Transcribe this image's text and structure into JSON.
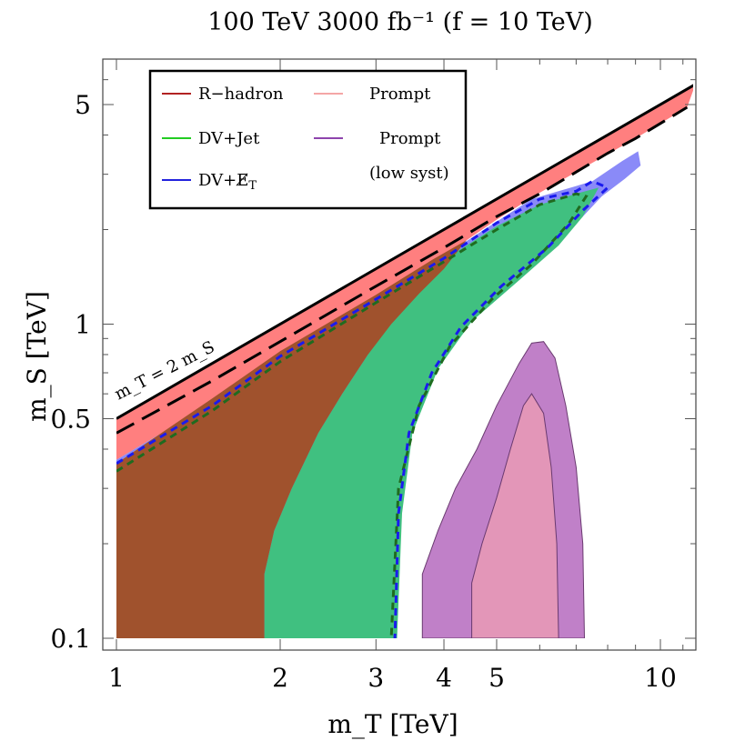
{
  "chart_data": {
    "type": "area",
    "title": "100 TeV 3000 fb⁻¹ (f = 10 TeV)",
    "xlabel": "m_T [TeV]",
    "ylabel": "m_S [TeV]",
    "xscale": "log",
    "yscale": "log",
    "xlim": [
      0.92,
      12.4
    ],
    "ylim": [
      0.09,
      7.5
    ],
    "x_ticks": [
      {
        "value": 1,
        "label": "1"
      },
      {
        "value": 2,
        "label": "2"
      },
      {
        "value": 3,
        "label": "3"
      },
      {
        "value": 4,
        "label": "4"
      },
      {
        "value": 5,
        "label": "5"
      },
      {
        "value": 10,
        "label": "10"
      }
    ],
    "y_ticks": [
      {
        "value": 0.1,
        "label": "0.1"
      },
      {
        "value": 0.5,
        "label": "0.5"
      },
      {
        "value": 1,
        "label": "1"
      },
      {
        "value": 5,
        "label": "5"
      }
    ],
    "annotation": "m_T = 2 m_S",
    "legend": [
      {
        "name": "R−hadron",
        "color": "#b22222"
      },
      {
        "name": "Prompt",
        "color": "#f4a6a6"
      },
      {
        "name": "DV+Jet",
        "color": "#22cc22"
      },
      {
        "name": "Prompt",
        "sub": "(low syst)",
        "color": "#8e44ad"
      },
      {
        "name": "DV+E̸",
        "sub_T": "T",
        "color": "#2222dd"
      }
    ],
    "colors": {
      "rhadron_fill": "#ff7f7f",
      "dvmet_fill": "#8a8af8",
      "dvjet_fill": "#40c080",
      "brown_fill": "#a0522d",
      "prompt_low_fill": "#c080c8",
      "prompt_fill": "#e396b8",
      "dvjet_line": "#1f6b1f",
      "dvmet_line": "#1a1aee",
      "limit_line": "#000000"
    },
    "series": [
      {
        "name": "kinematic limit (m_T = 2 m_S)",
        "style": "solid",
        "points": [
          [
            1,
            0.5
          ],
          [
            11.6,
            5.8
          ]
        ]
      },
      {
        "name": "R-hadron reach (dashed)",
        "style": "dashed",
        "points": [
          [
            1,
            0.45
          ],
          [
            1.5,
            0.66
          ],
          [
            2,
            0.88
          ],
          [
            3,
            1.32
          ],
          [
            4,
            1.75
          ],
          [
            5,
            2.2
          ],
          [
            6,
            2.6
          ],
          [
            7,
            3.05
          ],
          [
            8,
            3.5
          ],
          [
            9,
            3.9
          ],
          [
            11.2,
            4.9
          ]
        ]
      },
      {
        "name": "R-hadron region",
        "style": "fill",
        "points": [
          [
            1,
            0.5
          ],
          [
            6.0,
            3.0
          ],
          [
            11.6,
            5.8
          ],
          [
            11.2,
            4.9
          ],
          [
            9,
            3.9
          ],
          [
            7,
            3.05
          ],
          [
            6,
            2.62
          ],
          [
            5,
            2.15
          ],
          [
            4,
            1.65
          ],
          [
            3,
            1.22
          ],
          [
            2.4,
            0.95
          ],
          [
            2,
            0.8
          ],
          [
            1.5,
            0.56
          ],
          [
            1,
            0.37
          ]
        ]
      },
      {
        "name": "DV+MET",
        "style": "fill",
        "points": [
          [
            1,
            0.37
          ],
          [
            1.5,
            0.56
          ],
          [
            2,
            0.8
          ],
          [
            2.4,
            0.95
          ],
          [
            3,
            1.22
          ],
          [
            4,
            1.65
          ],
          [
            5,
            2.12
          ],
          [
            5.8,
            2.5
          ],
          [
            6.5,
            2.65
          ],
          [
            7.5,
            2.85
          ],
          [
            8.5,
            3.3
          ],
          [
            9.1,
            3.55
          ],
          [
            9.2,
            3.2
          ],
          [
            8.6,
            2.9
          ],
          [
            7.8,
            2.55
          ],
          [
            7.2,
            2.2
          ],
          [
            6.4,
            1.85
          ],
          [
            5.4,
            1.45
          ],
          [
            4.6,
            1.12
          ],
          [
            4.0,
            0.86
          ],
          [
            3.6,
            0.6
          ],
          [
            3.4,
            0.42
          ],
          [
            3.3,
            0.28
          ],
          [
            3.25,
            0.1
          ],
          [
            3.15,
            0.1
          ],
          [
            3.15,
            0.17
          ],
          [
            3.1,
            0.25
          ],
          [
            3.05,
            0.1
          ],
          [
            1,
            0.1
          ]
        ]
      },
      {
        "name": "DV+MET (dashed)",
        "style": "dashed",
        "points": [
          [
            1,
            0.36
          ],
          [
            1.5,
            0.55
          ],
          [
            2,
            0.79
          ],
          [
            3,
            1.2
          ],
          [
            4,
            1.62
          ],
          [
            5,
            2.1
          ],
          [
            6,
            2.5
          ],
          [
            7,
            2.65
          ],
          [
            7.5,
            2.85
          ],
          [
            8,
            2.72
          ],
          [
            7.2,
            2.3
          ],
          [
            6.2,
            1.75
          ],
          [
            5.1,
            1.32
          ],
          [
            4.3,
            0.98
          ],
          [
            3.8,
            0.7
          ],
          [
            3.45,
            0.45
          ],
          [
            3.3,
            0.25
          ],
          [
            3.25,
            0.1
          ]
        ]
      },
      {
        "name": "DV+Jet",
        "style": "fill",
        "points": [
          [
            2.4,
            0.95
          ],
          [
            3,
            1.2
          ],
          [
            4,
            1.6
          ],
          [
            5,
            2.05
          ],
          [
            6,
            2.4
          ],
          [
            7,
            2.6
          ],
          [
            7.7,
            2.72
          ],
          [
            7.2,
            2.2
          ],
          [
            6.5,
            1.78
          ],
          [
            5.5,
            1.38
          ],
          [
            4.5,
            1.02
          ],
          [
            3.9,
            0.72
          ],
          [
            3.5,
            0.45
          ],
          [
            3.35,
            0.25
          ],
          [
            3.28,
            0.1
          ],
          [
            1.87,
            0.1
          ],
          [
            1.87,
            0.16
          ],
          [
            1.95,
            0.22
          ],
          [
            2.1,
            0.3
          ],
          [
            2.35,
            0.45
          ],
          [
            2.6,
            0.6
          ],
          [
            2.9,
            0.8
          ]
        ]
      },
      {
        "name": "DV+Jet (dashed)",
        "style": "dashed",
        "points": [
          [
            1,
            0.34
          ],
          [
            1.5,
            0.53
          ],
          [
            2,
            0.76
          ],
          [
            3,
            1.17
          ],
          [
            4,
            1.58
          ],
          [
            5,
            2.0
          ],
          [
            6,
            2.4
          ],
          [
            7,
            2.6
          ],
          [
            7.3,
            2.55
          ],
          [
            6.8,
            2.1
          ],
          [
            5.8,
            1.55
          ],
          [
            4.9,
            1.2
          ],
          [
            4.1,
            0.85
          ],
          [
            3.6,
            0.55
          ],
          [
            3.3,
            0.3
          ],
          [
            3.2,
            0.1
          ]
        ]
      },
      {
        "name": "Brown region",
        "style": "fill",
        "points": [
          [
            1,
            0.1
          ],
          [
            1.87,
            0.1
          ],
          [
            1.87,
            0.16
          ],
          [
            1.95,
            0.22
          ],
          [
            2.1,
            0.3
          ],
          [
            2.35,
            0.45
          ],
          [
            2.6,
            0.6
          ],
          [
            2.9,
            0.8
          ],
          [
            3.2,
            1.0
          ],
          [
            3.6,
            1.25
          ],
          [
            4.0,
            1.5
          ],
          [
            4.4,
            1.85
          ],
          [
            3.8,
            1.6
          ],
          [
            3,
            1.24
          ],
          [
            2,
            0.82
          ],
          [
            1.5,
            0.58
          ],
          [
            1,
            0.36
          ]
        ]
      },
      {
        "name": "Prompt (low syst)",
        "style": "fill",
        "points": [
          [
            3.65,
            0.1
          ],
          [
            3.65,
            0.16
          ],
          [
            3.9,
            0.22
          ],
          [
            4.2,
            0.3
          ],
          [
            4.6,
            0.4
          ],
          [
            5.0,
            0.55
          ],
          [
            5.5,
            0.75
          ],
          [
            5.8,
            0.87
          ],
          [
            6.1,
            0.88
          ],
          [
            6.4,
            0.78
          ],
          [
            6.7,
            0.55
          ],
          [
            7.0,
            0.35
          ],
          [
            7.2,
            0.2
          ],
          [
            7.25,
            0.1
          ]
        ]
      },
      {
        "name": "Prompt",
        "style": "fill",
        "points": [
          [
            4.5,
            0.1
          ],
          [
            4.5,
            0.15
          ],
          [
            4.7,
            0.2
          ],
          [
            5.0,
            0.28
          ],
          [
            5.3,
            0.4
          ],
          [
            5.6,
            0.55
          ],
          [
            5.8,
            0.6
          ],
          [
            6.1,
            0.52
          ],
          [
            6.3,
            0.35
          ],
          [
            6.45,
            0.2
          ],
          [
            6.5,
            0.1
          ]
        ]
      }
    ]
  }
}
